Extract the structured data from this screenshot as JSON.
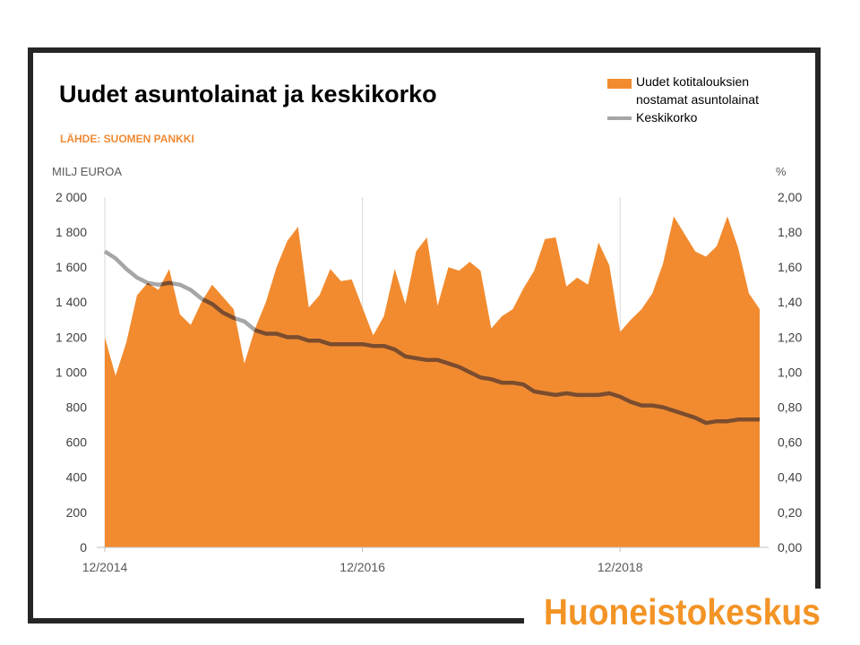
{
  "logo": {
    "text": "Huoneistokeskus"
  },
  "colors": {
    "area": "#f28b2f",
    "line": "#a6a6a6",
    "line_over_area": "#7c4c2c",
    "grid": "#d9d9d9",
    "axis": "#bfbfbf",
    "source_text": "#ef8a33",
    "frame": "#262626",
    "logo": "#f39426"
  },
  "chart_data": {
    "type": "area",
    "title": "Uudet asuntolainat ja keskikorko",
    "subtitle": "LÄHDE: SUOMEN PANKKI",
    "ylabel": "MILJ EUROA",
    "y2label": "%",
    "ylim": [
      0,
      2000
    ],
    "y2lim": [
      0,
      2
    ],
    "grid": "vertical",
    "legend_position": "top-right",
    "yticks": {
      "values": [
        0,
        200,
        400,
        600,
        800,
        1000,
        1200,
        1400,
        1600,
        1800,
        2000
      ],
      "labels": [
        "0",
        "200",
        "400",
        "600",
        "800",
        "1 000",
        "1 200",
        "1 400",
        "1 600",
        "1 800",
        "2 000"
      ]
    },
    "y2ticks": {
      "values": [
        0,
        0.2,
        0.4,
        0.6,
        0.8,
        1.0,
        1.2,
        1.4,
        1.6,
        1.8,
        2.0
      ],
      "labels": [
        "0,00",
        "0,20",
        "0,40",
        "0,60",
        "0,80",
        "1,00",
        "1,20",
        "1,40",
        "1,60",
        "1,80",
        "2,00"
      ]
    },
    "x_ticks": [
      "12/2014",
      "12/2016",
      "12/2018"
    ],
    "x": [
      "12/2014",
      "01/2015",
      "02/2015",
      "03/2015",
      "04/2015",
      "05/2015",
      "06/2015",
      "07/2015",
      "08/2015",
      "09/2015",
      "10/2015",
      "11/2015",
      "12/2015",
      "01/2016",
      "02/2016",
      "03/2016",
      "04/2016",
      "05/2016",
      "06/2016",
      "07/2016",
      "08/2016",
      "09/2016",
      "10/2016",
      "11/2016",
      "12/2016",
      "01/2017",
      "02/2017",
      "03/2017",
      "04/2017",
      "05/2017",
      "06/2017",
      "07/2017",
      "08/2017",
      "09/2017",
      "10/2017",
      "11/2017",
      "12/2017",
      "01/2018",
      "02/2018",
      "03/2018",
      "04/2018",
      "05/2018",
      "06/2018",
      "07/2018",
      "08/2018",
      "09/2018",
      "10/2018",
      "11/2018",
      "12/2018",
      "01/2019",
      "02/2019",
      "03/2019",
      "04/2019",
      "05/2019",
      "06/2019",
      "07/2019",
      "08/2019",
      "09/2019",
      "10/2019",
      "11/2019",
      "12/2019",
      "01/2020"
    ],
    "series": [
      {
        "name": "Uudet kotitalouksien nostamat asuntolainat",
        "type": "area",
        "axis": "left",
        "values": [
          1200,
          980,
          1170,
          1440,
          1510,
          1470,
          1590,
          1330,
          1270,
          1400,
          1500,
          1430,
          1360,
          1050,
          1250,
          1400,
          1600,
          1750,
          1830,
          1370,
          1440,
          1590,
          1520,
          1530,
          1370,
          1210,
          1320,
          1590,
          1390,
          1690,
          1770,
          1380,
          1600,
          1580,
          1630,
          1580,
          1250,
          1320,
          1360,
          1480,
          1580,
          1760,
          1770,
          1490,
          1540,
          1500,
          1740,
          1610,
          1230,
          1300,
          1360,
          1450,
          1620,
          1890,
          1790,
          1690,
          1660,
          1720,
          1890,
          1710,
          1450,
          1360
        ]
      },
      {
        "name": "Keskikorko",
        "type": "line",
        "axis": "right",
        "values": [
          1.69,
          1.65,
          1.59,
          1.54,
          1.51,
          1.5,
          1.51,
          1.5,
          1.47,
          1.42,
          1.39,
          1.34,
          1.31,
          1.29,
          1.24,
          1.22,
          1.22,
          1.2,
          1.2,
          1.18,
          1.18,
          1.16,
          1.16,
          1.16,
          1.16,
          1.15,
          1.15,
          1.13,
          1.09,
          1.08,
          1.07,
          1.07,
          1.05,
          1.03,
          1.0,
          0.97,
          0.96,
          0.94,
          0.94,
          0.93,
          0.89,
          0.88,
          0.87,
          0.88,
          0.87,
          0.87,
          0.87,
          0.88,
          0.86,
          0.83,
          0.81,
          0.81,
          0.8,
          0.78,
          0.76,
          0.74,
          0.71,
          0.72,
          0.72,
          0.73,
          0.73,
          0.73
        ]
      }
    ]
  }
}
